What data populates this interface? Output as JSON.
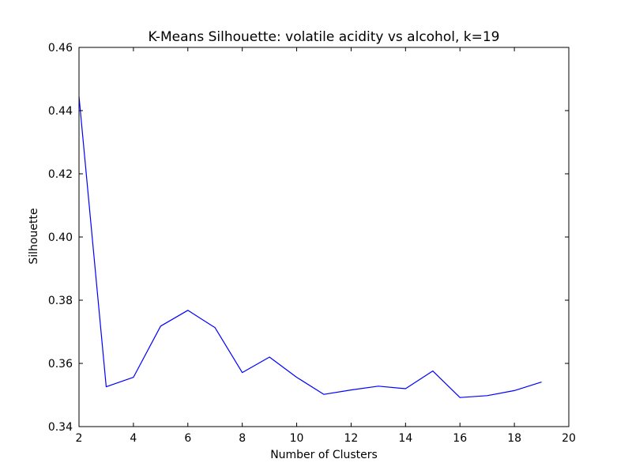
{
  "chart_data": {
    "type": "line",
    "title": "K-Means Silhouette: volatile acidity vs alcohol, k=19",
    "xlabel": "Number of Clusters",
    "ylabel": "Silhouette",
    "xlim": [
      2,
      20
    ],
    "ylim": [
      0.34,
      0.46
    ],
    "xticks": [
      "2",
      "4",
      "6",
      "8",
      "10",
      "12",
      "14",
      "16",
      "18",
      "20"
    ],
    "yticks": [
      "0.34",
      "0.36",
      "0.38",
      "0.40",
      "0.42",
      "0.44",
      "0.46"
    ],
    "grid": false,
    "series": [
      {
        "color": "#0000ff",
        "x": [
          2,
          3,
          4,
          5,
          6,
          7,
          8,
          9,
          10,
          11,
          12,
          13,
          14,
          15,
          16,
          17,
          18,
          19
        ],
        "y": [
          0.4445,
          0.3526,
          0.3556,
          0.3718,
          0.3768,
          0.3713,
          0.3571,
          0.362,
          0.3556,
          0.3502,
          0.3516,
          0.3528,
          0.352,
          0.3576,
          0.3492,
          0.3498,
          0.3514,
          0.3541
        ]
      }
    ]
  }
}
